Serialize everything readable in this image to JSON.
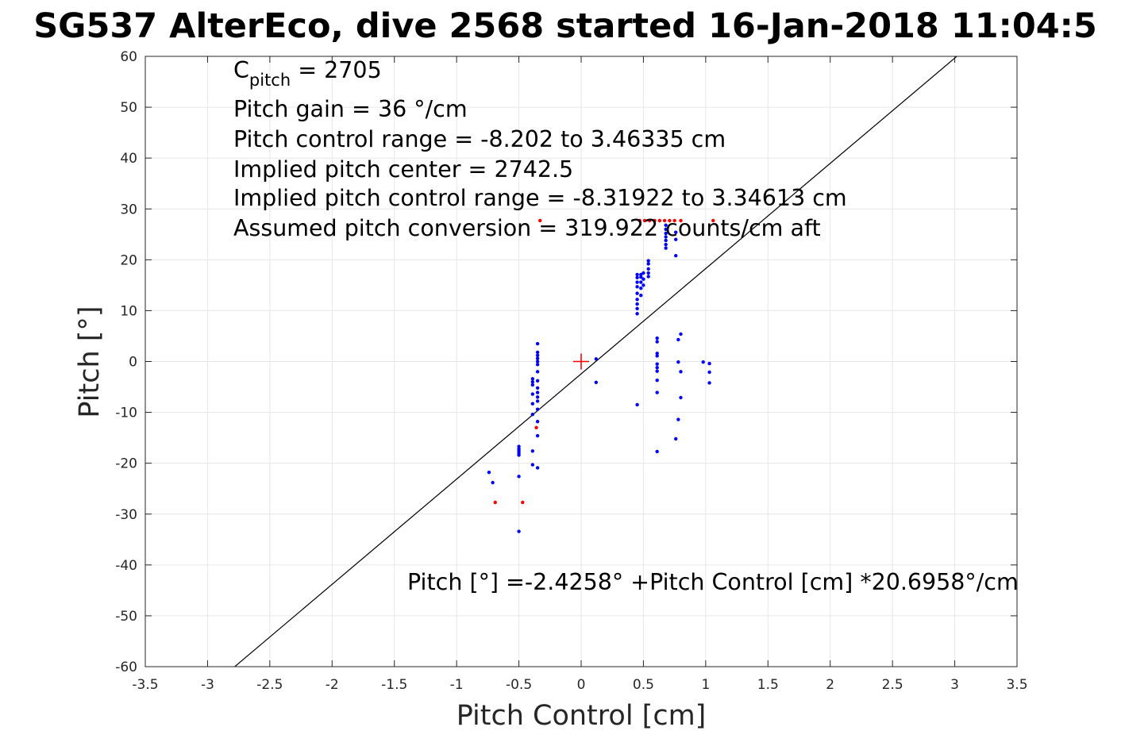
{
  "page_title": "SG537 AlterEco, dive 2568 started 16-Jan-2018 11:04:5",
  "chart_data": {
    "type": "scatter",
    "title": "SG537 AlterEco, dive 2568 started 16-Jan-2018 11:04:5",
    "xlabel": "Pitch Control [cm]",
    "ylabel": "Pitch [°]",
    "xlim": [
      -3.5,
      3.5
    ],
    "ylim": [
      -60,
      60
    ],
    "xticks": [
      -3.5,
      -3,
      -2.5,
      -2,
      -1.5,
      -1,
      -0.5,
      0,
      0.5,
      1,
      1.5,
      2,
      2.5,
      3,
      3.5
    ],
    "xtick_labels": [
      "-3.5",
      "-3",
      "-2.5",
      "-2",
      "-1.5",
      "-1",
      "-0.5",
      "0",
      "0.5",
      "1",
      "1.5",
      "2",
      "2.5",
      "3",
      "3.5"
    ],
    "yticks": [
      -60,
      -50,
      -40,
      -30,
      -20,
      -10,
      0,
      10,
      20,
      30,
      40,
      50,
      60
    ],
    "ytick_labels": [
      "-60",
      "-50",
      "-40",
      "-30",
      "-20",
      "-10",
      "0",
      "10",
      "20",
      "30",
      "40",
      "50",
      "60"
    ],
    "grid": true,
    "colors": {
      "used_points": "#0000ff",
      "excluded_points": "#ff0000",
      "fit_line": "#000000",
      "center_marker": "#ff0000",
      "grid": "#e6e6e6"
    },
    "fit_line": {
      "intercept": -2.4258,
      "slope": 20.6958
    },
    "center_marker": {
      "x": 0,
      "y": 0,
      "shape": "plus"
    },
    "series": [
      {
        "color": "#0000ff",
        "points": [
          [
            -0.74,
            -21.8
          ],
          [
            -0.71,
            -23.8
          ],
          [
            -0.5,
            -16.7
          ],
          [
            -0.5,
            -17.2
          ],
          [
            -0.5,
            -17.6
          ],
          [
            -0.5,
            -18.0
          ],
          [
            -0.5,
            -18.4
          ],
          [
            -0.5,
            -22.6
          ],
          [
            -0.5,
            -33.4
          ],
          [
            -0.39,
            -3.4
          ],
          [
            -0.39,
            -4.0
          ],
          [
            -0.39,
            -4.6
          ],
          [
            -0.39,
            -6.4
          ],
          [
            -0.39,
            -8.3
          ],
          [
            -0.39,
            -10.4
          ],
          [
            -0.39,
            -17.6
          ],
          [
            -0.39,
            -20.3
          ],
          [
            -0.35,
            3.5
          ],
          [
            -0.35,
            1.8
          ],
          [
            -0.35,
            1.2
          ],
          [
            -0.35,
            0.6
          ],
          [
            -0.35,
            0.0
          ],
          [
            -0.35,
            -0.6
          ],
          [
            -0.35,
            -2.0
          ],
          [
            -0.35,
            -3.8
          ],
          [
            -0.35,
            -5.2
          ],
          [
            -0.35,
            -6.1
          ],
          [
            -0.35,
            -7.0
          ],
          [
            -0.35,
            -7.8
          ],
          [
            -0.35,
            -9.4
          ],
          [
            -0.35,
            -11.8
          ],
          [
            -0.35,
            -14.6
          ],
          [
            -0.35,
            -20.9
          ],
          [
            0.12,
            0.5
          ],
          [
            0.12,
            -4.1
          ],
          [
            0.45,
            9.4
          ],
          [
            0.45,
            10.4
          ],
          [
            0.45,
            11.3
          ],
          [
            0.45,
            12.2
          ],
          [
            0.45,
            13.4
          ],
          [
            0.45,
            14.7
          ],
          [
            0.45,
            15.6
          ],
          [
            0.45,
            16.5
          ],
          [
            0.45,
            17.1
          ],
          [
            0.45,
            -8.5
          ],
          [
            0.48,
            13.0
          ],
          [
            0.48,
            14.4
          ],
          [
            0.48,
            15.6
          ],
          [
            0.48,
            16.6
          ],
          [
            0.48,
            17.1
          ],
          [
            0.5,
            15.0
          ],
          [
            0.5,
            16.2
          ],
          [
            0.5,
            17.4
          ],
          [
            0.54,
            16.7
          ],
          [
            0.54,
            17.4
          ],
          [
            0.54,
            18.2
          ],
          [
            0.54,
            19.2
          ],
          [
            0.54,
            19.8
          ],
          [
            0.61,
            4.6
          ],
          [
            0.61,
            3.9
          ],
          [
            0.61,
            1.6
          ],
          [
            0.61,
            1.1
          ],
          [
            0.61,
            -0.5
          ],
          [
            0.61,
            -1.2
          ],
          [
            0.61,
            -1.9
          ],
          [
            0.61,
            -3.7
          ],
          [
            0.61,
            -6.1
          ],
          [
            0.61,
            -17.7
          ],
          [
            0.68,
            22.3
          ],
          [
            0.68,
            23.0
          ],
          [
            0.68,
            23.8
          ],
          [
            0.68,
            24.5
          ],
          [
            0.68,
            25.2
          ],
          [
            0.68,
            26.0
          ],
          [
            0.68,
            26.8
          ],
          [
            0.76,
            20.8
          ],
          [
            0.76,
            24.0
          ],
          [
            0.76,
            25.4
          ],
          [
            0.76,
            -15.2
          ],
          [
            0.78,
            4.3
          ],
          [
            0.78,
            -0.1
          ],
          [
            0.78,
            -11.4
          ],
          [
            0.8,
            5.4
          ],
          [
            0.8,
            -2.0
          ],
          [
            0.8,
            -7.1
          ],
          [
            0.98,
            -0.1
          ],
          [
            1.03,
            -0.4
          ],
          [
            1.03,
            -2.1
          ],
          [
            1.03,
            -4.2
          ]
        ]
      },
      {
        "color": "#ff0000",
        "points": [
          [
            -0.69,
            -27.7
          ],
          [
            -0.47,
            -27.7
          ],
          [
            -0.36,
            -13.0
          ],
          [
            -0.33,
            27.7
          ],
          [
            0.47,
            27.7
          ],
          [
            0.51,
            27.7
          ],
          [
            0.55,
            27.7
          ],
          [
            0.59,
            27.7
          ],
          [
            0.63,
            27.7
          ],
          [
            0.67,
            27.7
          ],
          [
            0.71,
            27.7
          ],
          [
            0.75,
            27.7
          ],
          [
            0.8,
            27.7
          ],
          [
            1.06,
            27.7
          ]
        ]
      }
    ],
    "annotations": {
      "c_pitch_symbol": "C",
      "c_pitch_subscript": "pitch",
      "c_pitch_value": " = 2705",
      "pitch_gain": "Pitch gain = 36 °/cm",
      "pitch_control_range": "Pitch control range = -8.202 to 3.46335 cm",
      "implied_pitch_center": "Implied pitch center = 2742.5",
      "implied_pitch_control_range": "Implied pitch control range = -8.31922 to 3.34613 cm",
      "assumed_pitch_conversion": "Assumed pitch conversion = 319.922 counts/cm aft",
      "fit_equation": "Pitch [°] =-2.4258° +Pitch Control [cm] *20.6958°/cm"
    }
  }
}
